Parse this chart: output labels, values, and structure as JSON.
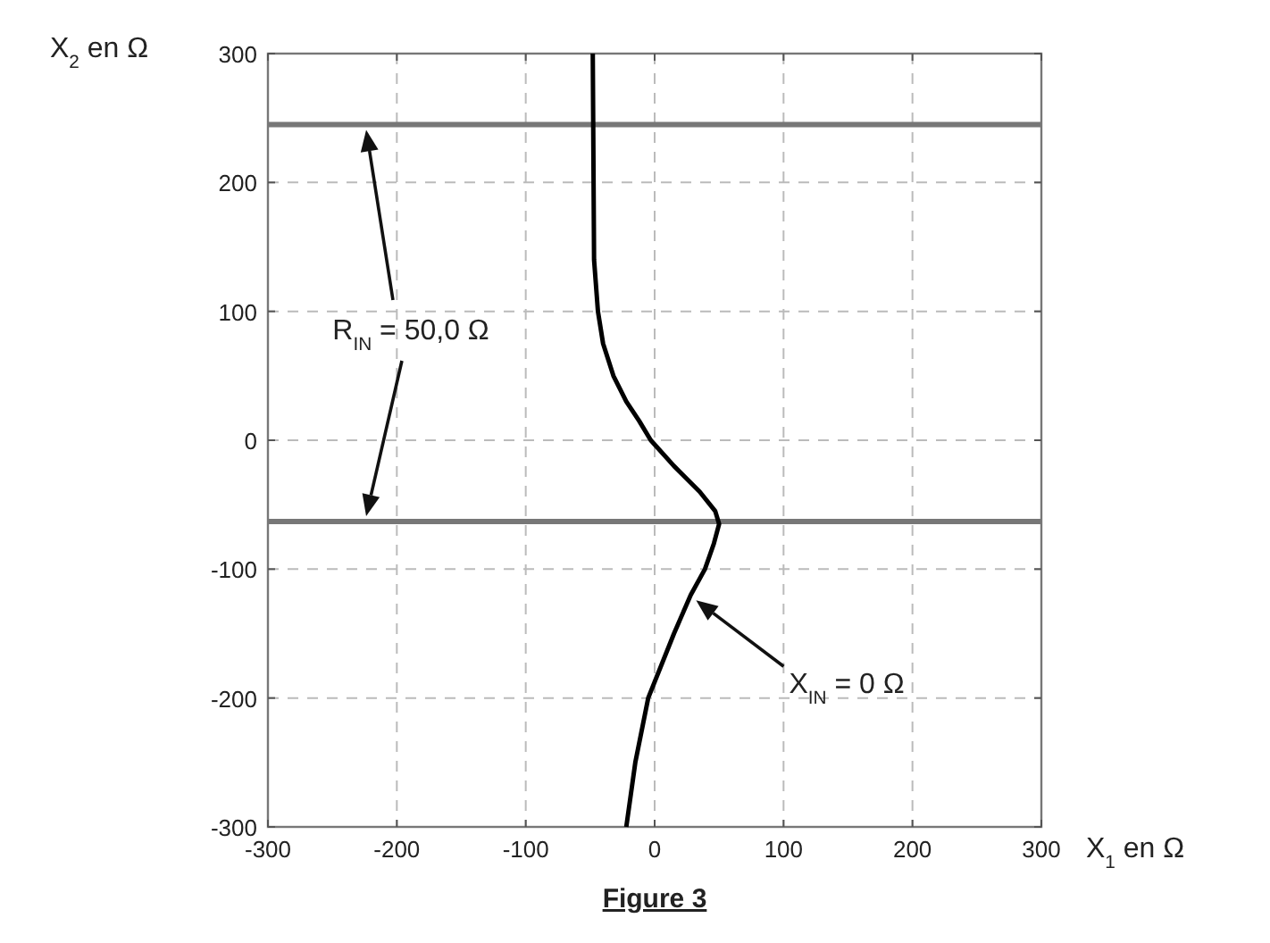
{
  "chart_data": {
    "type": "line",
    "title": "Figure 3",
    "xlabel": "X$_{1}$ en Ω",
    "ylabel": "X$_{2}$ en Ω",
    "xlim": [
      -300,
      300
    ],
    "ylim": [
      -300,
      300
    ],
    "xticks": [
      -300,
      -200,
      -100,
      0,
      100,
      200,
      300
    ],
    "yticks": [
      -300,
      -200,
      -100,
      0,
      100,
      200,
      300
    ],
    "grid": true,
    "series": [
      {
        "color": "#000000",
        "x": [
          -48,
          -47,
          -44,
          -40,
          -32,
          -22,
          -12,
          -3,
          15,
          35,
          47,
          50,
          46,
          39,
          28,
          15,
          -5,
          -15,
          -22
        ],
        "values": [
          300,
          140,
          100,
          75,
          50,
          30,
          15,
          0,
          -20,
          -40,
          -55,
          -65,
          -80,
          -100,
          -120,
          -150,
          -200,
          -250,
          -300
        ]
      }
    ],
    "ref_lines": [
      {
        "axis": "y",
        "value": 245,
        "color": "#777777"
      },
      {
        "axis": "y",
        "value": -63,
        "color": "#777777"
      }
    ],
    "annotations": [
      "R$_{IN}$ = 50,0 Ω",
      "X$_{IN}$ = 0 Ω"
    ]
  }
}
